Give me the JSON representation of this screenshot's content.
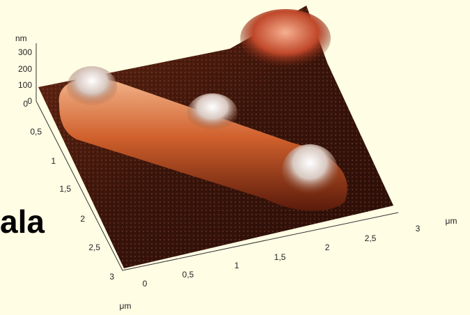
{
  "caption_fragment": "ala",
  "z_axis": {
    "unit": "nm",
    "ticks": [
      "300",
      "200",
      "100",
      "0"
    ]
  },
  "y_axis": {
    "ticks": [
      "0",
      "0,5",
      "1",
      "1,5",
      "2",
      "2,5",
      "3"
    ]
  },
  "x_axis": {
    "unit": "μm",
    "ticks": [
      "0",
      "0,5",
      "1",
      "1,5",
      "2",
      "2,5",
      "3"
    ],
    "side_unit": "μm"
  }
}
